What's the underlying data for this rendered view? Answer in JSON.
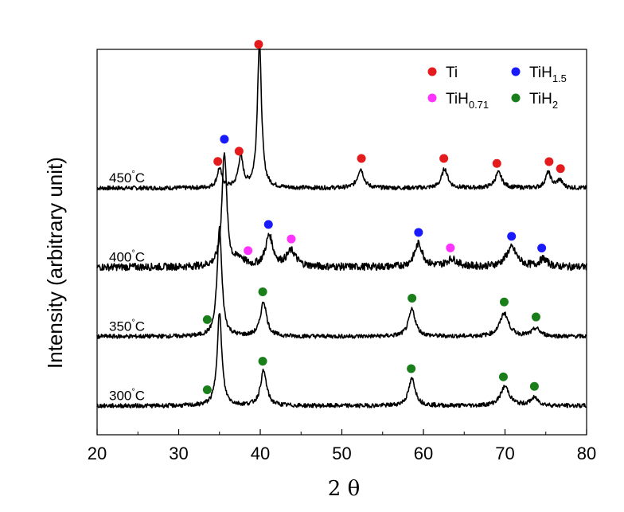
{
  "chart_data": {
    "type": "line",
    "title": "",
    "xlabel": "2 θ",
    "ylabel": "Intensity (arbitrary unit)",
    "xlim": [
      20,
      80
    ],
    "x_ticks": [
      20,
      30,
      40,
      50,
      60,
      70,
      80
    ],
    "grid": false,
    "legend_position": "top-right",
    "legend": [
      {
        "key": "Ti",
        "label": "Ti",
        "sub": "",
        "color": "#e41a1c"
      },
      {
        "key": "TiH1.5",
        "label": "TiH",
        "sub": "1.5",
        "color": "#1a1aff"
      },
      {
        "key": "TiH0.71",
        "label": "TiH",
        "sub": "0.71",
        "color": "#ff33ff"
      },
      {
        "key": "TiH2",
        "label": "TiH",
        "sub": "2",
        "color": "#1a7f1a"
      }
    ],
    "series": [
      {
        "name": "450°C",
        "temp": "450",
        "unit": "°C",
        "baseline": 0.64,
        "peaks": [
          [
            35.0,
            0.05,
            0.35
          ],
          [
            37.6,
            0.08,
            0.35
          ],
          [
            39.9,
            0.38,
            0.3
          ],
          [
            52.3,
            0.05,
            0.45
          ],
          [
            62.6,
            0.05,
            0.45
          ],
          [
            69.2,
            0.04,
            0.5
          ],
          [
            75.3,
            0.04,
            0.4
          ],
          [
            76.7,
            0.02,
            0.4
          ]
        ],
        "markers": [
          {
            "x": 34.8,
            "phase": "Ti"
          },
          {
            "x": 37.4,
            "phase": "Ti"
          },
          {
            "x": 39.8,
            "phase": "Ti"
          },
          {
            "x": 52.4,
            "phase": "Ti"
          },
          {
            "x": 62.5,
            "phase": "Ti"
          },
          {
            "x": 69.0,
            "phase": "Ti"
          },
          {
            "x": 75.4,
            "phase": "Ti"
          },
          {
            "x": 76.8,
            "phase": "Ti"
          }
        ]
      },
      {
        "name": "400°C",
        "temp": "400",
        "unit": "°C",
        "baseline": 0.435,
        "peaks": [
          [
            35.6,
            0.3,
            0.35
          ],
          [
            37.5,
            0.02,
            0.6
          ],
          [
            41.1,
            0.08,
            0.55
          ],
          [
            43.8,
            0.04,
            0.7
          ],
          [
            59.4,
            0.06,
            0.6
          ],
          [
            63.5,
            0.02,
            0.8
          ],
          [
            70.8,
            0.05,
            0.8
          ],
          [
            74.7,
            0.02,
            0.6
          ]
        ],
        "markers": [
          {
            "x": 35.6,
            "phase": "TiH1.5"
          },
          {
            "x": 38.5,
            "phase": "TiH0.71"
          },
          {
            "x": 41.0,
            "phase": "TiH1.5"
          },
          {
            "x": 43.8,
            "phase": "TiH0.71"
          },
          {
            "x": 59.4,
            "phase": "TiH1.5"
          },
          {
            "x": 63.3,
            "phase": "TiH0.71"
          },
          {
            "x": 70.8,
            "phase": "TiH1.5"
          },
          {
            "x": 74.5,
            "phase": "TiH1.5"
          }
        ]
      },
      {
        "name": "350°C",
        "temp": "350",
        "unit": "°C",
        "baseline": 0.255,
        "peaks": [
          [
            35.0,
            0.28,
            0.35
          ],
          [
            40.4,
            0.09,
            0.45
          ],
          [
            58.6,
            0.07,
            0.5
          ],
          [
            69.9,
            0.06,
            0.65
          ],
          [
            73.8,
            0.02,
            0.6
          ]
        ],
        "markers": [
          {
            "x": 33.5,
            "phase": "TiH2"
          },
          {
            "x": 40.3,
            "phase": "TiH2"
          },
          {
            "x": 58.6,
            "phase": "TiH2"
          },
          {
            "x": 69.9,
            "phase": "TiH2"
          },
          {
            "x": 73.8,
            "phase": "TiH2"
          }
        ]
      },
      {
        "name": "300°C",
        "temp": "300",
        "unit": "°C",
        "baseline": 0.075,
        "peaks": [
          [
            35.0,
            0.24,
            0.35
          ],
          [
            40.4,
            0.09,
            0.45
          ],
          [
            58.6,
            0.07,
            0.5
          ],
          [
            70.0,
            0.05,
            0.65
          ],
          [
            73.6,
            0.02,
            0.6
          ]
        ],
        "markers": [
          {
            "x": 33.5,
            "phase": "TiH2"
          },
          {
            "x": 40.3,
            "phase": "TiH2"
          },
          {
            "x": 58.5,
            "phase": "TiH2"
          },
          {
            "x": 69.8,
            "phase": "TiH2"
          },
          {
            "x": 73.6,
            "phase": "TiH2"
          }
        ]
      }
    ]
  }
}
